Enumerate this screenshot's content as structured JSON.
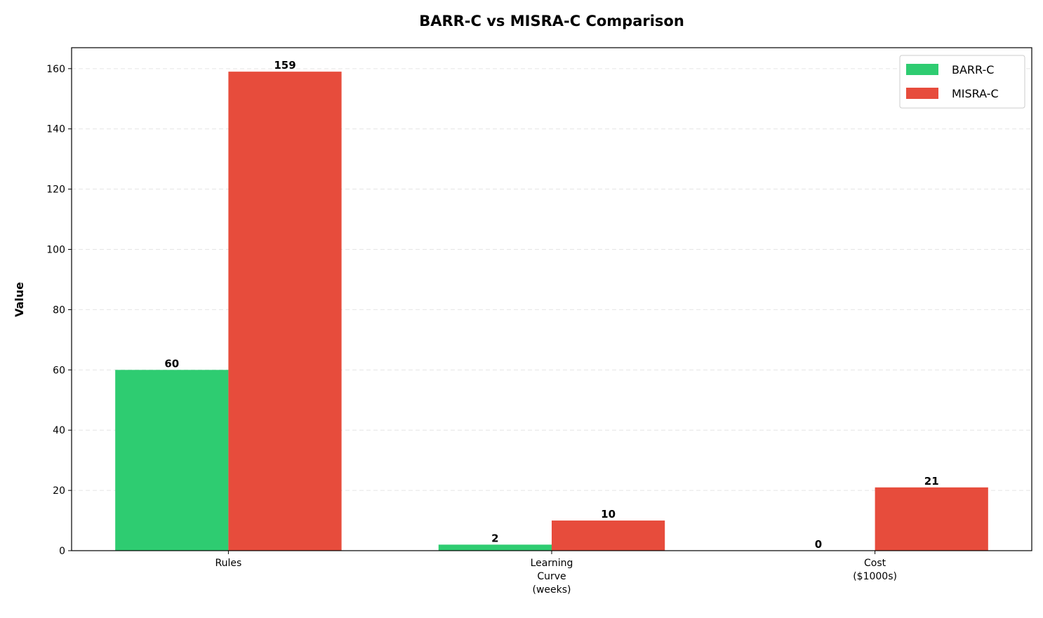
{
  "chart_data": {
    "type": "bar",
    "title": "BARR-C vs MISRA-C Comparison",
    "xlabel": "",
    "ylabel": "Value",
    "categories": [
      "Rules",
      "Learning\nCurve\n(weeks)",
      "Cost\n($1000s)"
    ],
    "series": [
      {
        "name": "BARR-C",
        "color": "#2ecc71",
        "values": [
          60,
          2,
          0
        ]
      },
      {
        "name": "MISRA-C",
        "color": "#e74c3c",
        "values": [
          159,
          10,
          21
        ]
      }
    ],
    "ylim": [
      0,
      166.95
    ],
    "yticks": [
      0,
      20,
      40,
      60,
      80,
      100,
      120,
      140,
      160
    ],
    "grid": "y dashed",
    "legend": "top-right"
  }
}
